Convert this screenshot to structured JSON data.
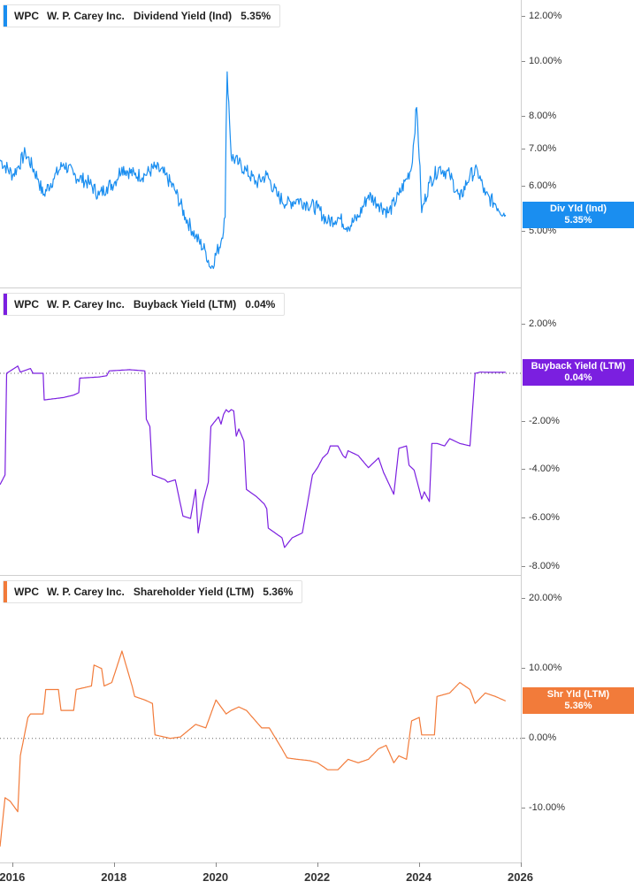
{
  "chart_data": [
    {
      "type": "line",
      "ticker": "WPC",
      "company": "W. P. Carey Inc.",
      "metric": "Dividend Yield (Ind)",
      "current_value": "5.35%",
      "badge_label": "Div Yld (Ind)",
      "badge_value": "5.35%",
      "color": "#1a8ef0",
      "y_scale": "log",
      "ylim": [
        4.05,
        12.6
      ],
      "y_ticks": [
        {
          "value": 12,
          "label": "12.00%"
        },
        {
          "value": 10,
          "label": "10.00%"
        },
        {
          "value": 8,
          "label": "8.00%"
        },
        {
          "value": 7,
          "label": "7.00%"
        },
        {
          "value": 6,
          "label": "6.00%"
        },
        {
          "value": 5,
          "label": "5.00%"
        }
      ],
      "series": [
        {
          "x": [
            2015.75,
            2016.0,
            2016.1,
            2016.25,
            2016.5,
            2016.6,
            2016.8,
            2017.0,
            2017.2,
            2017.5,
            2017.7,
            2017.85,
            2018.0,
            2018.15,
            2018.4,
            2018.6,
            2018.8,
            2019.0,
            2019.2,
            2019.4,
            2019.6,
            2019.8,
            2019.9,
            2020.1,
            2020.18,
            2020.22,
            2020.3,
            2020.45,
            2020.6,
            2020.8,
            2021.0,
            2021.2,
            2021.4,
            2021.6,
            2021.8,
            2022.0,
            2022.2,
            2022.4,
            2022.6,
            2022.8,
            2023.0,
            2023.2,
            2023.4,
            2023.6,
            2023.75,
            2023.85,
            2023.95,
            2024.05,
            2024.2,
            2024.4,
            2024.6,
            2024.8,
            2025.0,
            2025.15,
            2025.3,
            2025.5,
            2025.7
          ],
          "y": [
            6.7,
            6.3,
            6.5,
            6.9,
            6.2,
            5.8,
            6.2,
            6.6,
            6.3,
            6.1,
            5.8,
            6.0,
            6.1,
            6.5,
            6.3,
            6.3,
            6.5,
            6.3,
            5.9,
            5.3,
            4.9,
            4.6,
            4.3,
            4.8,
            5.3,
            9.6,
            6.8,
            6.6,
            6.4,
            6.1,
            6.3,
            5.8,
            5.6,
            5.7,
            5.6,
            5.5,
            5.2,
            5.3,
            5.1,
            5.3,
            5.8,
            5.6,
            5.4,
            5.8,
            6.2,
            6.5,
            8.3,
            5.4,
            6.1,
            6.5,
            6.3,
            5.7,
            6.3,
            6.4,
            5.8,
            5.6,
            5.35
          ]
        }
      ]
    },
    {
      "type": "line",
      "ticker": "WPC",
      "company": "W. P. Carey Inc.",
      "metric": "Buyback Yield (LTM)",
      "current_value": "0.04%",
      "badge_label": "Buyback Yield (LTM)",
      "badge_value": "0.04%",
      "color": "#7b1fe0",
      "ylim": [
        -8.3,
        3.0
      ],
      "y_ticks": [
        {
          "value": 2,
          "label": "2.00%"
        },
        {
          "value": -2,
          "label": "-2.00%"
        },
        {
          "value": -4,
          "label": "-4.00%"
        },
        {
          "value": -6,
          "label": "-6.00%"
        },
        {
          "value": -8,
          "label": "-8.00%"
        }
      ],
      "zero_line": 0,
      "series": [
        {
          "x": [
            2015.75,
            2015.85,
            2015.88,
            2016.1,
            2016.15,
            2016.35,
            2016.4,
            2016.6,
            2016.62,
            2017.0,
            2017.2,
            2017.3,
            2017.32,
            2017.7,
            2017.85,
            2017.9,
            2018.3,
            2018.6,
            2018.63,
            2018.7,
            2018.75,
            2019.0,
            2019.05,
            2019.2,
            2019.3,
            2019.35,
            2019.5,
            2019.6,
            2019.65,
            2019.75,
            2019.85,
            2019.9,
            2020.05,
            2020.1,
            2020.15,
            2020.2,
            2020.25,
            2020.3,
            2020.35,
            2020.4,
            2020.45,
            2020.55,
            2020.6,
            2020.8,
            2020.95,
            2021.0,
            2021.03,
            2021.3,
            2021.35,
            2021.5,
            2021.7,
            2021.9,
            2022.0,
            2022.1,
            2022.2,
            2022.25,
            2022.4,
            2022.5,
            2022.55,
            2022.6,
            2022.8,
            2023.0,
            2023.2,
            2023.3,
            2023.5,
            2023.6,
            2023.75,
            2023.8,
            2023.9,
            2024.05,
            2024.1,
            2024.2,
            2024.25,
            2024.35,
            2024.5,
            2024.6,
            2024.8,
            2025.0,
            2025.1,
            2025.15,
            2025.2,
            2025.4,
            2025.7
          ],
          "y": [
            -4.6,
            -4.2,
            0.0,
            0.3,
            0.05,
            0.2,
            0.0,
            0.0,
            -1.1,
            -1.0,
            -0.9,
            -0.8,
            -0.2,
            -0.15,
            -0.1,
            0.1,
            0.15,
            0.1,
            -1.9,
            -2.2,
            -4.2,
            -4.4,
            -4.5,
            -4.4,
            -5.4,
            -5.9,
            -6.0,
            -4.8,
            -6.6,
            -5.3,
            -4.5,
            -2.2,
            -1.8,
            -2.1,
            -1.7,
            -1.5,
            -1.6,
            -1.5,
            -1.55,
            -2.6,
            -2.3,
            -2.8,
            -4.8,
            -5.1,
            -5.4,
            -5.6,
            -6.4,
            -6.8,
            -7.2,
            -6.8,
            -6.6,
            -4.2,
            -3.9,
            -3.5,
            -3.3,
            -3.0,
            -3.0,
            -3.4,
            -3.5,
            -3.2,
            -3.4,
            -3.9,
            -3.5,
            -4.1,
            -5.0,
            -3.1,
            -3.0,
            -3.8,
            -4.0,
            -5.2,
            -4.9,
            -5.3,
            -2.9,
            -2.9,
            -3.0,
            -2.7,
            -2.9,
            -3.0,
            0.0,
            0.02,
            0.05,
            0.04,
            0.04
          ]
        }
      ]
    },
    {
      "type": "line",
      "ticker": "WPC",
      "company": "W. P. Carey Inc.",
      "metric": "Shareholder Yield (LTM)",
      "current_value": "5.36%",
      "badge_label": "Shr Yld (LTM)",
      "badge_value": "5.36%",
      "color": "#f27b3a",
      "ylim": [
        -16.0,
        21.5
      ],
      "y_ticks": [
        {
          "value": 20,
          "label": "20.00%"
        },
        {
          "value": 10,
          "label": "10.00%"
        },
        {
          "value": 0,
          "label": "0.00%"
        },
        {
          "value": -10,
          "label": "-10.00%"
        }
      ],
      "zero_line": 0,
      "series": [
        {
          "x": [
            2015.75,
            2015.85,
            2015.95,
            2016.1,
            2016.15,
            2016.3,
            2016.35,
            2016.6,
            2016.65,
            2016.9,
            2016.95,
            2017.2,
            2017.25,
            2017.55,
            2017.6,
            2017.75,
            2017.8,
            2017.95,
            2018.15,
            2018.35,
            2018.4,
            2018.6,
            2018.75,
            2018.8,
            2019.1,
            2019.3,
            2019.6,
            2019.8,
            2020.0,
            2020.2,
            2020.3,
            2020.45,
            2020.6,
            2020.9,
            2021.05,
            2021.3,
            2021.4,
            2021.6,
            2021.85,
            2022.0,
            2022.2,
            2022.4,
            2022.6,
            2022.8,
            2023.0,
            2023.2,
            2023.35,
            2023.5,
            2023.6,
            2023.75,
            2023.85,
            2024.0,
            2024.05,
            2024.3,
            2024.35,
            2024.6,
            2024.8,
            2025.0,
            2025.1,
            2025.3,
            2025.5,
            2025.7
          ],
          "y": [
            -15.5,
            -8.5,
            -9.0,
            -10.5,
            -2.5,
            3.0,
            3.5,
            3.5,
            7.0,
            7.0,
            4.0,
            4.0,
            7.0,
            7.5,
            10.5,
            10.0,
            7.5,
            8.0,
            12.5,
            7.5,
            6.0,
            5.5,
            5.0,
            0.5,
            0.0,
            0.2,
            2.0,
            1.5,
            5.5,
            3.5,
            4.0,
            4.5,
            4.0,
            1.5,
            1.5,
            -1.5,
            -2.8,
            -3.0,
            -3.2,
            -3.5,
            -4.5,
            -4.5,
            -3.0,
            -3.5,
            -3.0,
            -1.5,
            -1.0,
            -3.5,
            -2.5,
            -3.0,
            2.5,
            3.0,
            0.5,
            0.5,
            6.0,
            6.5,
            8.0,
            7.0,
            5.0,
            6.5,
            6.0,
            5.36
          ]
        }
      ]
    }
  ],
  "x_axis": {
    "ticks": [
      {
        "value": 2016,
        "label": "2016"
      },
      {
        "value": 2018,
        "label": "2018"
      },
      {
        "value": 2020,
        "label": "2020"
      },
      {
        "value": 2022,
        "label": "2022"
      },
      {
        "value": 2024,
        "label": "2024"
      },
      {
        "value": 2026,
        "label": "2026"
      }
    ]
  }
}
